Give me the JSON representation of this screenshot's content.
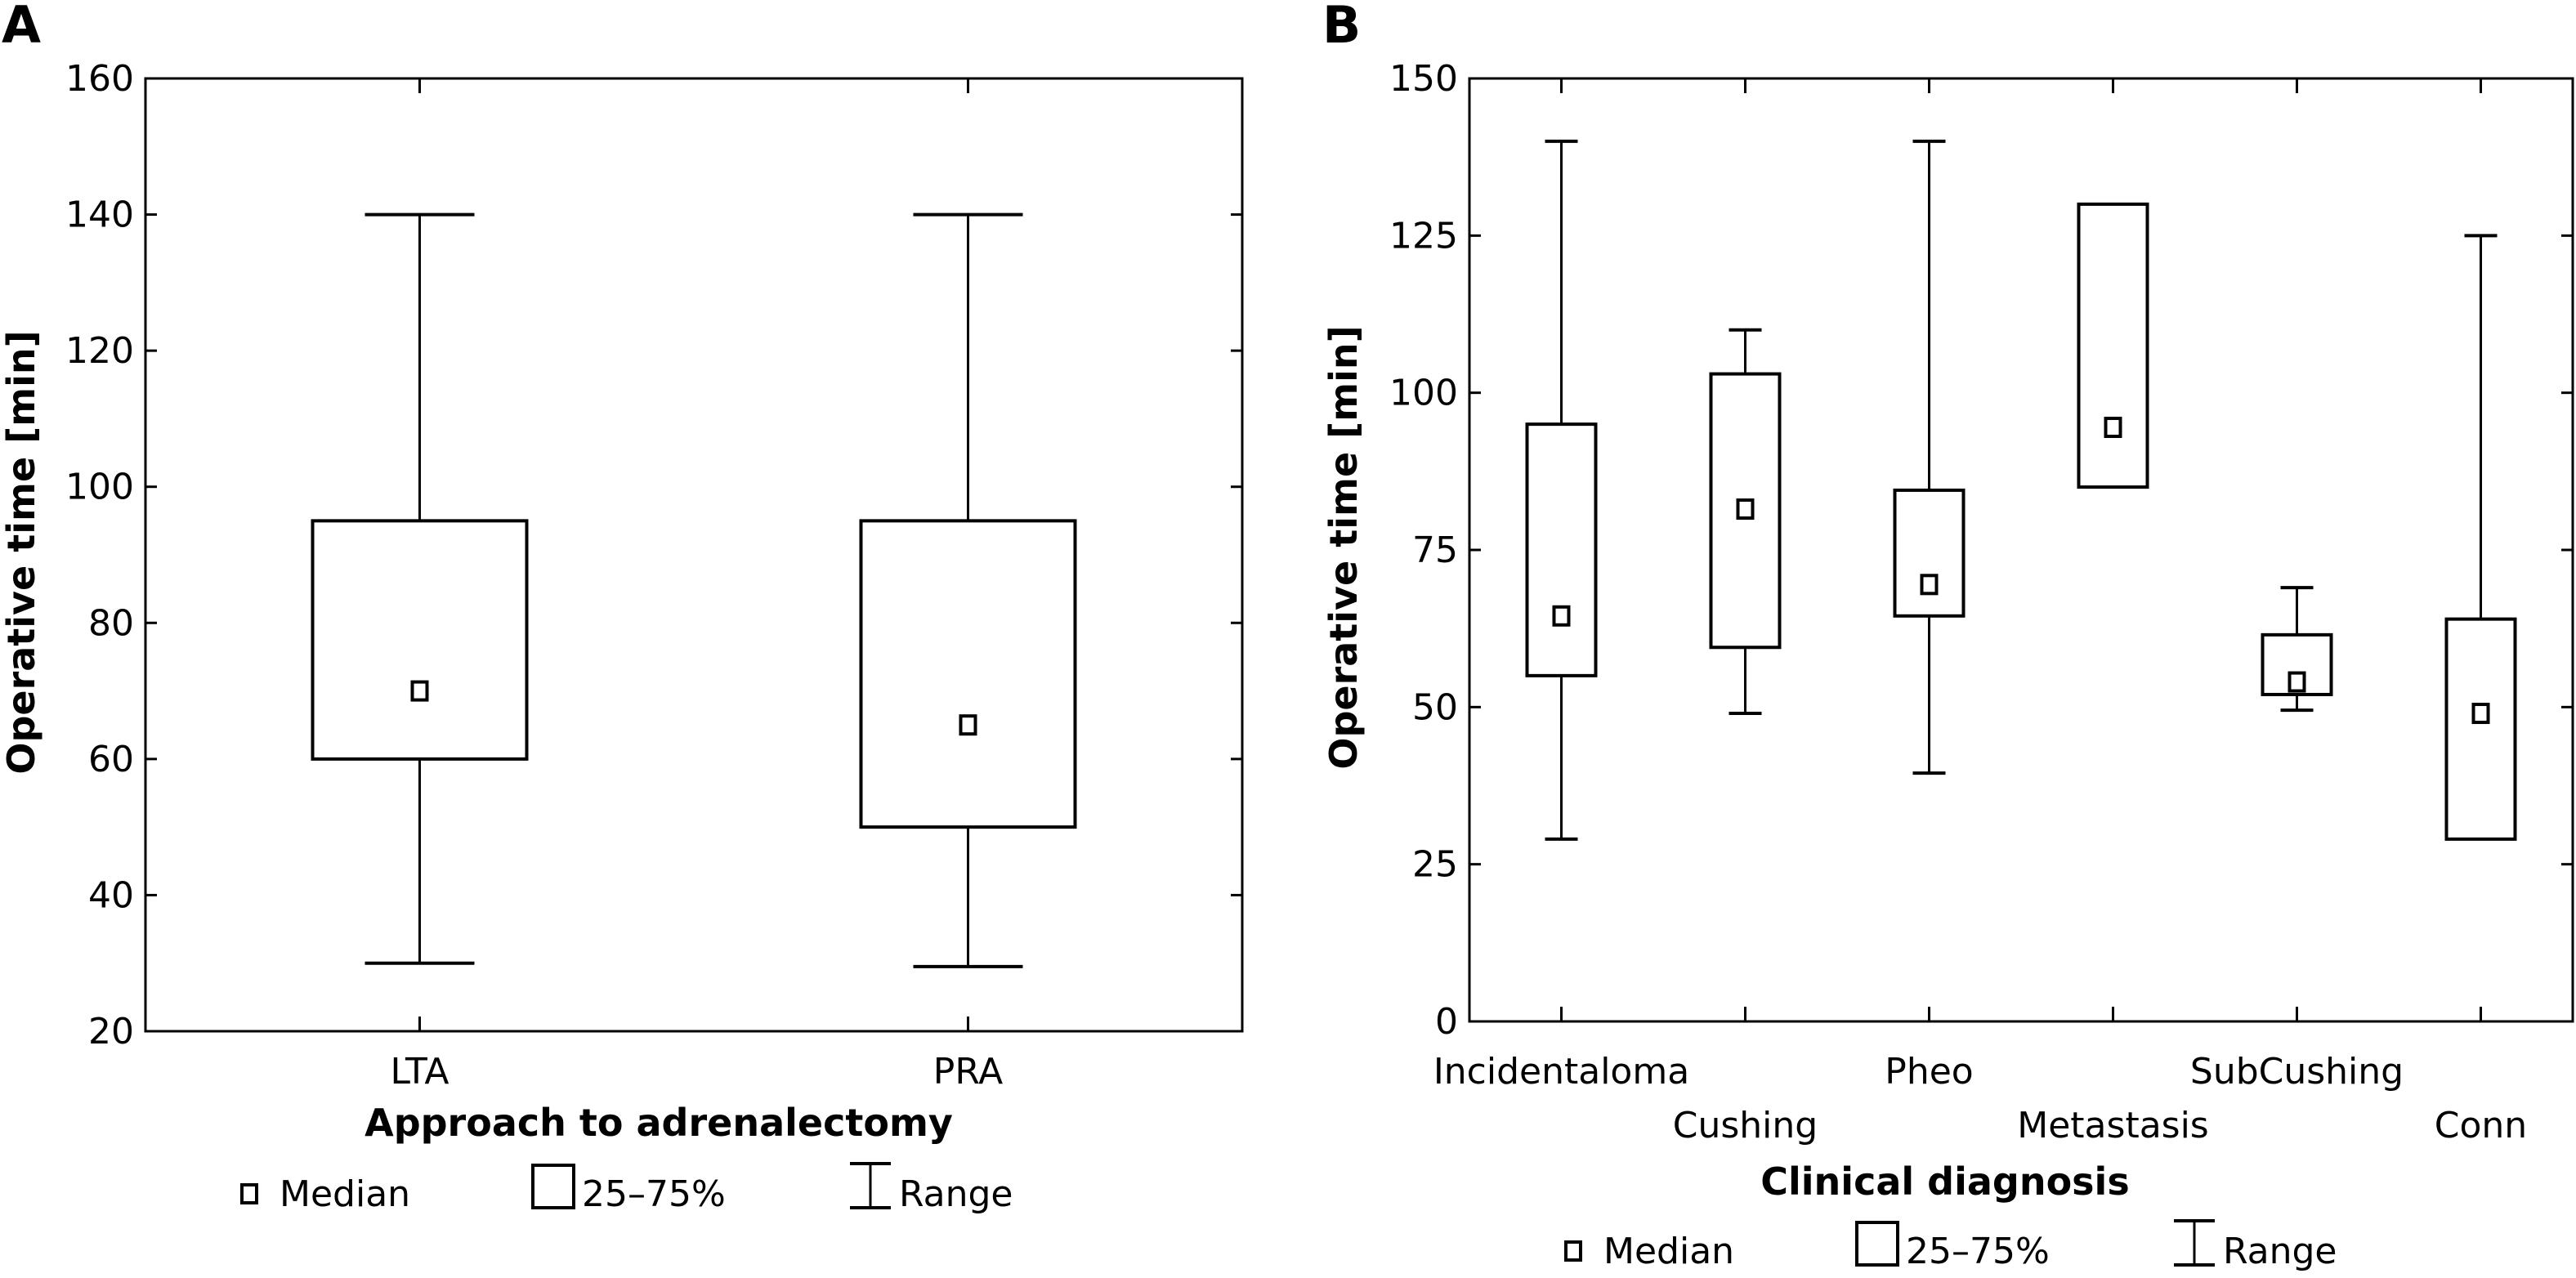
{
  "chart_data": [
    {
      "type": "boxplot",
      "panel_label": "A",
      "title": "",
      "xlabel": "Approach to adrenalectomy",
      "ylabel": "Operative time [min]",
      "ylim": [
        20,
        160
      ],
      "yticks": [
        20,
        40,
        60,
        80,
        100,
        120,
        140,
        160
      ],
      "grid": false,
      "categories": [
        "LTA",
        "PRA"
      ],
      "boxes": [
        {
          "name": "LTA",
          "min": 30,
          "q1": 60,
          "median": 70,
          "q3": 95,
          "max": 140
        },
        {
          "name": "PRA",
          "min": 29.5,
          "q1": 50,
          "median": 65,
          "q3": 95,
          "max": 140
        }
      ],
      "legend": {
        "position": "bottom",
        "items": [
          "Median",
          "25–75%",
          "Range"
        ]
      }
    },
    {
      "type": "boxplot",
      "panel_label": "B",
      "title": "",
      "xlabel": "Clinical diagnosis",
      "ylabel": "Operative time [min]",
      "ylim": [
        0,
        150
      ],
      "yticks": [
        0,
        25,
        50,
        75,
        100,
        125,
        150
      ],
      "grid": false,
      "categories": [
        "Incidentaloma",
        "Cushing",
        "Pheo",
        "Metastasis",
        "SubCushing",
        "Conn"
      ],
      "boxes": [
        {
          "name": "Incidentaloma",
          "min": 29,
          "q1": 55,
          "median": 64.5,
          "q3": 95,
          "max": 140
        },
        {
          "name": "Cushing",
          "min": 49,
          "q1": 59.5,
          "median": 81.5,
          "q3": 103,
          "max": 110
        },
        {
          "name": "Pheo",
          "min": 39.5,
          "q1": 64.5,
          "median": 69.5,
          "q3": 84.5,
          "max": 140
        },
        {
          "name": "Metastasis",
          "min": 85,
          "q1": 85,
          "median": 94.5,
          "q3": 130,
          "max": 130
        },
        {
          "name": "SubCushing",
          "min": 49.5,
          "q1": 52,
          "median": 54,
          "q3": 61.5,
          "max": 69
        },
        {
          "name": "Conn",
          "min": 29,
          "q1": 29,
          "median": 49,
          "q3": 64,
          "max": 125
        }
      ],
      "legend": {
        "position": "bottom",
        "items": [
          "Median",
          "25–75%",
          "Range"
        ]
      }
    }
  ]
}
